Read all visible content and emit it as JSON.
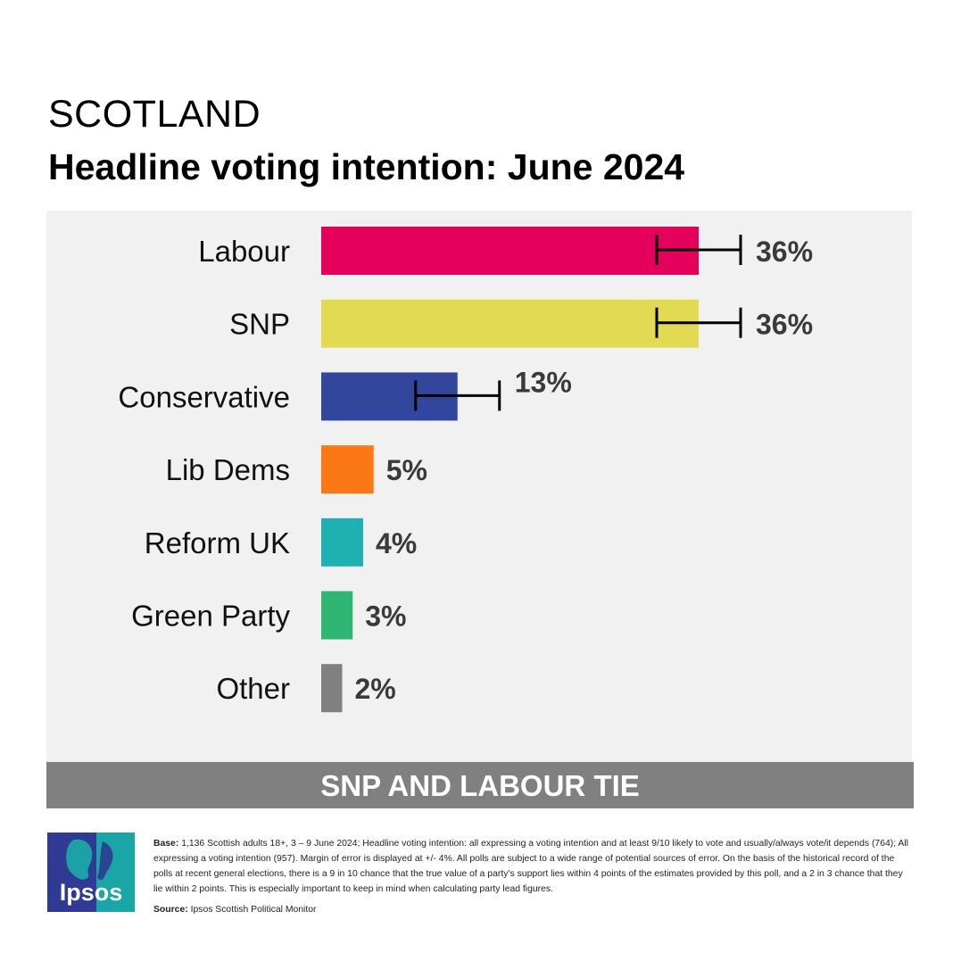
{
  "header": {
    "kicker": "SCOTLAND",
    "title": "Headline voting intention: June 2024"
  },
  "chart_data": {
    "type": "bar",
    "orientation": "horizontal",
    "categories": [
      "Labour",
      "SNP",
      "Conservative",
      "Lib Dems",
      "Reform UK",
      "Green Party",
      "Other"
    ],
    "values": [
      36,
      36,
      13,
      5,
      4,
      3,
      2
    ],
    "value_labels": [
      "36%",
      "36%",
      "13%",
      "5%",
      "4%",
      "3%",
      "2%"
    ],
    "colors": [
      "#e4005b",
      "#e2da52",
      "#31469c",
      "#fc7815",
      "#1fb1b1",
      "#2fb672",
      "#808080"
    ],
    "error_margin": [
      4,
      4,
      4,
      null,
      null,
      null,
      null
    ],
    "xlim": [
      0,
      50
    ],
    "grid": false,
    "legend": "none"
  },
  "banner": {
    "text": "SNP AND LABOUR TIE"
  },
  "logo": {
    "word": "Ipsos",
    "colors": {
      "left": "#2e3a94",
      "right": "#1aa6a6"
    }
  },
  "footnote": {
    "base_label": "Base:",
    "base_text": "1,136 Scottish adults 18+, 3 – 9 June 2024; Headline voting intention: all expressing a voting intention and at least 9/10 likely to vote and usually/always vote/it depends (764); All expressing a voting intention (957). Margin of error is displayed at +/- 4%. All polls are subject to a wide range of potential sources of error. On the basis of the historical record of the polls at recent general elections, there is a 9 in 10 chance that the true value of a party’s support lies within 4 points of the estimates provided by this poll, and a 2 in 3 chance that they lie within 2 points. This is especially important to keep in mind when calculating party lead figures.",
    "source_label": "Source:",
    "source_text": "Ipsos Scottish Political Monitor"
  }
}
